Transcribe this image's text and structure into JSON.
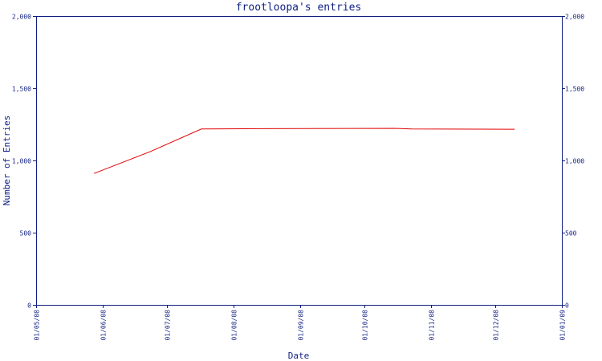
{
  "chart_data": {
    "type": "line",
    "title": "frootloopa's entries",
    "xlabel": "Date",
    "ylabel": "Number of Entries",
    "ylim": [
      0,
      2000
    ],
    "y_ticks": [
      "0",
      "500",
      "1,000",
      "1,500",
      "2,000"
    ],
    "y_tick_values": [
      0,
      500,
      1000,
      1500,
      2000
    ],
    "x_ticks": [
      "01/05/08",
      "01/06/08",
      "01/07/08",
      "01/08/08",
      "01/09/08",
      "01/10/08",
      "01/11/08",
      "01/12/08",
      "01/01/09"
    ],
    "xlim": [
      "2008-05-01",
      "2009-01-01"
    ],
    "grid": false,
    "series": [
      {
        "color": "#e00000",
        "points": [
          {
            "x": "2008-05-28",
            "y": 910
          },
          {
            "x": "2008-06-23",
            "y": 1060
          },
          {
            "x": "2008-07-17",
            "y": 1218
          },
          {
            "x": "2008-08-15",
            "y": 1220
          },
          {
            "x": "2008-10-15",
            "y": 1222
          },
          {
            "x": "2008-10-23",
            "y": 1218
          },
          {
            "x": "2008-12-10",
            "y": 1216
          }
        ]
      }
    ]
  }
}
